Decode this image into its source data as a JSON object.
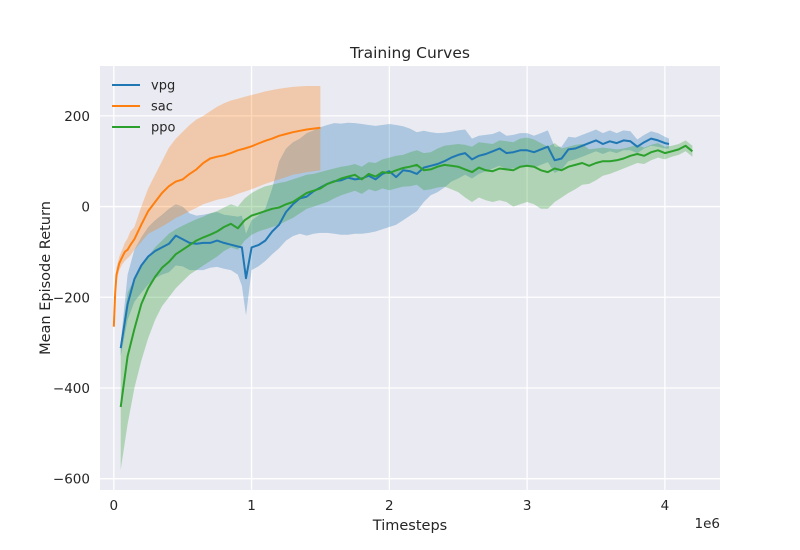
{
  "chart_data": {
    "type": "line",
    "title": "Training Curves",
    "xlabel": "Timesteps",
    "ylabel": "Mean Episode Return",
    "x_scale_label": "1e6",
    "xlim": [
      -0.1,
      4.4
    ],
    "ylim": [
      -625,
      310
    ],
    "x_ticks": [
      0,
      1,
      2,
      3,
      4
    ],
    "x_tick_labels": [
      "0",
      "1",
      "2",
      "3",
      "4"
    ],
    "y_ticks": [
      -600,
      -400,
      -200,
      0,
      200
    ],
    "y_tick_labels": [
      "−600",
      "−400",
      "−200",
      "0",
      "200"
    ],
    "grid": true,
    "legend_position": "top-left",
    "background": "#eaeaf2",
    "series": [
      {
        "name": "vpg",
        "color": "#1f77b4",
        "x": [
          0.05,
          0.1,
          0.15,
          0.2,
          0.25,
          0.3,
          0.35,
          0.4,
          0.45,
          0.5,
          0.55,
          0.6,
          0.65,
          0.7,
          0.75,
          0.8,
          0.85,
          0.9,
          0.93,
          0.96,
          1.0,
          1.05,
          1.1,
          1.15,
          1.2,
          1.25,
          1.3,
          1.35,
          1.4,
          1.45,
          1.5,
          1.55,
          1.6,
          1.65,
          1.7,
          1.75,
          1.8,
          1.85,
          1.9,
          1.95,
          2.0,
          2.05,
          2.1,
          2.15,
          2.2,
          2.25,
          2.3,
          2.35,
          2.4,
          2.45,
          2.5,
          2.55,
          2.6,
          2.65,
          2.7,
          2.75,
          2.8,
          2.85,
          2.9,
          2.95,
          3.0,
          3.05,
          3.1,
          3.15,
          3.2,
          3.25,
          3.3,
          3.35,
          3.4,
          3.45,
          3.5,
          3.55,
          3.6,
          3.65,
          3.7,
          3.75,
          3.8,
          3.85,
          3.9,
          3.95,
          4.0,
          4.03
        ],
        "y": [
          -312,
          -215,
          -160,
          -130,
          -110,
          -98,
          -90,
          -82,
          -64,
          -72,
          -80,
          -82,
          -80,
          -80,
          -75,
          -80,
          -84,
          -88,
          -90,
          -158,
          -90,
          -85,
          -75,
          -55,
          -40,
          -12,
          5,
          18,
          22,
          34,
          42,
          50,
          56,
          58,
          64,
          60,
          62,
          68,
          60,
          72,
          78,
          65,
          80,
          78,
          72,
          86,
          90,
          94,
          100,
          108,
          114,
          118,
          104,
          112,
          116,
          122,
          128,
          118,
          120,
          124,
          124,
          120,
          126,
          132,
          102,
          106,
          126,
          128,
          134,
          140,
          146,
          138,
          144,
          140,
          146,
          144,
          132,
          142,
          150,
          146,
          140,
          138
        ],
        "lower": [
          -330,
          -250,
          -210,
          -190,
          -172,
          -158,
          -150,
          -145,
          -130,
          -132,
          -140,
          -140,
          -140,
          -135,
          -133,
          -137,
          -140,
          -150,
          -175,
          -240,
          -140,
          -132,
          -120,
          -105,
          -92,
          -75,
          -65,
          -60,
          -64,
          -60,
          -58,
          -58,
          -60,
          -62,
          -62,
          -60,
          -60,
          -58,
          -55,
          -50,
          -45,
          -40,
          -30,
          -20,
          -10,
          10,
          25,
          32,
          42,
          55,
          62,
          70,
          62,
          72,
          78,
          84,
          90,
          82,
          84,
          88,
          88,
          86,
          92,
          98,
          74,
          82,
          100,
          104,
          110,
          116,
          122,
          116,
          122,
          118,
          124,
          124,
          118,
          128,
          134,
          132,
          128,
          128
        ],
        "upper": [
          -300,
          -150,
          -95,
          -68,
          -45,
          -30,
          -18,
          -5,
          5,
          0,
          -15,
          -20,
          -18,
          -15,
          -12,
          -18,
          -20,
          -22,
          -20,
          -60,
          -30,
          -20,
          -5,
          40,
          100,
          128,
          142,
          150,
          162,
          168,
          175,
          180,
          184,
          183,
          185,
          184,
          182,
          180,
          178,
          180,
          182,
          180,
          177,
          172,
          164,
          167,
          164,
          162,
          163,
          165,
          168,
          170,
          150,
          156,
          158,
          160,
          166,
          156,
          158,
          162,
          162,
          156,
          162,
          168,
          132,
          132,
          154,
          152,
          158,
          164,
          170,
          162,
          168,
          162,
          168,
          166,
          148,
          158,
          166,
          162,
          154,
          150
        ]
      },
      {
        "name": "sac",
        "color": "#ff7f0e",
        "x": [
          0.0,
          0.01,
          0.02,
          0.04,
          0.06,
          0.08,
          0.1,
          0.12,
          0.15,
          0.2,
          0.25,
          0.3,
          0.35,
          0.4,
          0.45,
          0.5,
          0.55,
          0.6,
          0.65,
          0.7,
          0.75,
          0.8,
          0.85,
          0.9,
          0.95,
          1.0,
          1.05,
          1.1,
          1.15,
          1.2,
          1.25,
          1.3,
          1.35,
          1.4,
          1.45,
          1.5
        ],
        "y": [
          -265,
          -190,
          -150,
          -125,
          -112,
          -100,
          -95,
          -85,
          -72,
          -40,
          -10,
          10,
          30,
          45,
          55,
          60,
          72,
          82,
          96,
          106,
          110,
          113,
          118,
          124,
          128,
          133,
          139,
          145,
          150,
          156,
          160,
          164,
          167,
          170,
          172,
          174
        ],
        "lower": [
          -270,
          -200,
          -165,
          -140,
          -128,
          -120,
          -114,
          -108,
          -95,
          -78,
          -60,
          -52,
          -44,
          -35,
          -25,
          -18,
          -10,
          -3,
          5,
          10,
          15,
          18,
          22,
          28,
          33,
          38,
          44,
          50,
          55,
          60,
          65,
          70,
          73,
          76,
          78,
          80
        ],
        "upper": [
          -260,
          -180,
          -135,
          -110,
          -96,
          -80,
          -70,
          -55,
          -45,
          0,
          40,
          70,
          100,
          130,
          150,
          165,
          180,
          192,
          200,
          210,
          220,
          228,
          234,
          238,
          242,
          246,
          250,
          254,
          257,
          260,
          262,
          264,
          265,
          266,
          266,
          266
        ]
      },
      {
        "name": "ppo",
        "color": "#2ca02c",
        "x": [
          0.05,
          0.1,
          0.15,
          0.2,
          0.25,
          0.3,
          0.35,
          0.4,
          0.45,
          0.5,
          0.55,
          0.6,
          0.65,
          0.7,
          0.75,
          0.8,
          0.85,
          0.9,
          0.95,
          1.0,
          1.05,
          1.1,
          1.15,
          1.2,
          1.25,
          1.3,
          1.35,
          1.4,
          1.45,
          1.5,
          1.55,
          1.6,
          1.65,
          1.7,
          1.75,
          1.8,
          1.85,
          1.9,
          1.95,
          2.0,
          2.05,
          2.1,
          2.15,
          2.2,
          2.25,
          2.3,
          2.35,
          2.4,
          2.45,
          2.5,
          2.55,
          2.6,
          2.65,
          2.7,
          2.75,
          2.8,
          2.85,
          2.9,
          2.95,
          3.0,
          3.05,
          3.1,
          3.15,
          3.2,
          3.25,
          3.3,
          3.35,
          3.4,
          3.45,
          3.5,
          3.55,
          3.6,
          3.65,
          3.7,
          3.75,
          3.8,
          3.85,
          3.9,
          3.95,
          4.0,
          4.05,
          4.1,
          4.15,
          4.2
        ],
        "y": [
          -442,
          -330,
          -270,
          -215,
          -180,
          -155,
          -135,
          -122,
          -105,
          -95,
          -85,
          -75,
          -68,
          -62,
          -55,
          -45,
          -38,
          -48,
          -30,
          -20,
          -15,
          -10,
          -5,
          -2,
          5,
          10,
          20,
          30,
          35,
          40,
          50,
          55,
          62,
          66,
          70,
          60,
          72,
          66,
          76,
          74,
          80,
          85,
          88,
          92,
          80,
          82,
          88,
          92,
          90,
          88,
          82,
          76,
          86,
          80,
          78,
          84,
          82,
          80,
          88,
          90,
          88,
          80,
          76,
          84,
          80,
          88,
          92,
          96,
          90,
          96,
          100,
          100,
          102,
          106,
          112,
          116,
          112,
          120,
          124,
          118,
          122,
          126,
          134,
          122
        ],
        "lower": [
          -580,
          -480,
          -400,
          -340,
          -290,
          -250,
          -220,
          -200,
          -180,
          -165,
          -150,
          -140,
          -130,
          -120,
          -110,
          -98,
          -90,
          -95,
          -75,
          -62,
          -55,
          -50,
          -45,
          -40,
          -32,
          -25,
          -15,
          -5,
          0,
          5,
          10,
          18,
          25,
          30,
          35,
          28,
          38,
          34,
          40,
          36,
          40,
          44,
          45,
          48,
          36,
          38,
          42,
          44,
          38,
          32,
          20,
          10,
          20,
          14,
          10,
          14,
          10,
          0,
          5,
          10,
          5,
          -5,
          -5,
          10,
          20,
          30,
          38,
          48,
          50,
          58,
          68,
          72,
          78,
          84,
          90,
          96,
          94,
          102,
          108,
          104,
          110,
          114,
          122,
          110
        ],
        "upper": [
          -300,
          -190,
          -160,
          -130,
          -110,
          -90,
          -75,
          -60,
          -50,
          -42,
          -35,
          -28,
          -22,
          -15,
          -10,
          -2,
          5,
          0,
          18,
          30,
          38,
          45,
          48,
          52,
          55,
          60,
          65,
          70,
          72,
          76,
          80,
          84,
          88,
          90,
          94,
          88,
          98,
          96,
          104,
          108,
          112,
          114,
          120,
          124,
          118,
          120,
          128,
          134,
          136,
          138,
          136,
          132,
          142,
          140,
          138,
          146,
          144,
          142,
          150,
          152,
          148,
          140,
          132,
          140,
          128,
          132,
          136,
          138,
          126,
          128,
          130,
          128,
          126,
          128,
          132,
          136,
          130,
          136,
          140,
          132,
          134,
          138,
          146,
          134
        ]
      }
    ]
  }
}
